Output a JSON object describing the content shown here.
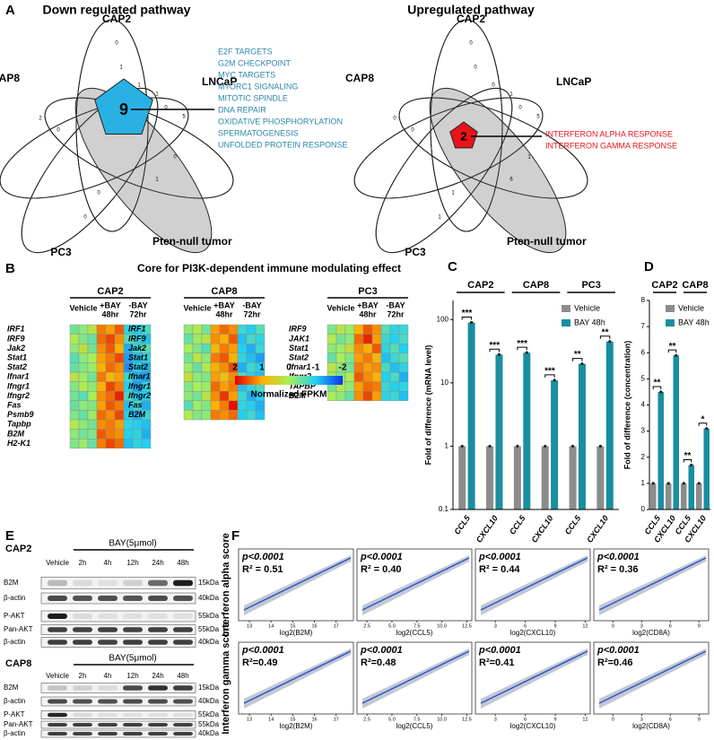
{
  "panels": {
    "A": {
      "label": "A",
      "left": {
        "title": "Down regulated pathway",
        "sets": [
          "CAP2",
          "CAP8",
          "LNCaP",
          "PC3",
          "Pten-null tumor"
        ],
        "core": 9,
        "counts": [
          0,
          2,
          5,
          0,
          1,
          1,
          0,
          0,
          1,
          0,
          1,
          0
        ],
        "pathways": [
          "E2F TARGETS",
          "G2M CHECKPOINT",
          "MYC TARGETS",
          "MTORC1 SIGNALING",
          "MITOTIC SPINDLE",
          "DNA REPAIR",
          "OXIDATIVE PHOSPHORYLATION",
          "SPERMATOGENESIS",
          "UNFOLDED PROTEIN RESPONSE"
        ]
      },
      "right": {
        "title": "Upregulated pathway",
        "sets": [
          "CAP2",
          "CAP8",
          "LNCaP",
          "PC3",
          "Pten-null tumor"
        ],
        "core": 2,
        "counts": [
          0,
          0,
          5,
          1,
          0,
          1,
          0,
          1,
          6,
          0,
          0,
          1
        ],
        "pathways": [
          "INTERFERON ALPHA RESPONSE",
          "INTERFERON GAMMA RESPONSE"
        ]
      }
    },
    "B": {
      "label": "B",
      "title": "Core for PI3K-dependent immune modulating effect",
      "columns": [
        "Vehicle",
        "+BAY",
        "-BAY"
      ],
      "times": [
        "48hr",
        "72hr"
      ],
      "colorbar": {
        "ticks": [
          2,
          1,
          0,
          -1,
          -2
        ],
        "colors": [
          "#e00000",
          "#ffb000",
          "#a8ef5a",
          "#22d0f0",
          "#1030f0"
        ],
        "label": "Normalized FPKM"
      },
      "heatmaps": [
        {
          "name": "CAP2",
          "genes": [
            "IRF1",
            "IRF9",
            "Jak2",
            "Stat1",
            "Stat2",
            "Ifnar1",
            "Ifngr1",
            "Ifngr2",
            "Fas",
            "Psmb9",
            "Tapbp",
            "B2M",
            "H2-K1"
          ],
          "values": [
            [
              -0.4,
              -0.2,
              0.2,
              1.3,
              1.1,
              1.5,
              -0.9,
              -1.0,
              -0.7
            ],
            [
              0.1,
              -0.3,
              -0.5,
              1.4,
              1.6,
              1.2,
              -0.6,
              -0.9,
              -1.1
            ],
            [
              -0.2,
              0.3,
              -0.4,
              1.2,
              1.5,
              1.0,
              -1.2,
              -0.8,
              -0.6
            ],
            [
              -0.6,
              -0.2,
              0.0,
              1.1,
              1.3,
              1.6,
              -1.3,
              -1.1,
              -0.9
            ],
            [
              -0.5,
              -0.3,
              -0.1,
              1.0,
              1.4,
              1.2,
              -1.4,
              -1.0,
              -1.2
            ],
            [
              0.2,
              -0.1,
              -0.4,
              1.3,
              0.9,
              1.1,
              -0.8,
              -1.2,
              -1.3
            ],
            [
              -0.3,
              0.1,
              -0.2,
              1.0,
              1.6,
              1.3,
              -1.0,
              -1.3,
              -0.9
            ],
            [
              -0.4,
              -0.6,
              0.0,
              1.2,
              1.4,
              1.8,
              -0.7,
              -1.1,
              -1.0
            ],
            [
              -0.5,
              -0.2,
              -0.3,
              1.1,
              1.5,
              1.3,
              -1.1,
              -0.8,
              -1.2
            ],
            [
              -0.3,
              -0.5,
              -0.1,
              1.4,
              1.2,
              1.6,
              -1.0,
              -1.2,
              -0.8
            ],
            [
              0.1,
              -0.2,
              -0.4,
              1.2,
              1.3,
              1.1,
              -0.9,
              -1.0,
              -1.1
            ],
            [
              -0.2,
              -0.4,
              -0.3,
              1.5,
              1.3,
              1.2,
              -1.0,
              -0.9,
              -1.2
            ],
            [
              -0.3,
              -0.1,
              -0.5,
              1.3,
              1.6,
              1.4,
              -1.1,
              -0.9,
              -1.0
            ]
          ]
        },
        {
          "name": "CAP8",
          "genes": [
            "IRF1",
            "IRF9",
            "Jak2",
            "Stat1",
            "Stat2",
            "Ifnar1",
            "Ifngr1",
            "Ifngr2",
            "Fas",
            "B2M"
          ],
          "values": [
            [
              -0.2,
              0.1,
              -0.4,
              1.1,
              1.4,
              1.2,
              -0.8,
              -1.0,
              -0.6
            ],
            [
              -0.5,
              -0.1,
              0.2,
              1.2,
              1.0,
              1.5,
              -1.1,
              -0.7,
              -0.9
            ],
            [
              0.0,
              -0.3,
              -0.6,
              0.9,
              1.3,
              1.1,
              -1.0,
              -1.2,
              -0.8
            ],
            [
              -0.4,
              0.2,
              -0.2,
              1.3,
              1.5,
              1.0,
              -0.9,
              -1.1,
              -1.3
            ],
            [
              -0.1,
              -0.5,
              0.1,
              1.0,
              1.2,
              1.6,
              -1.2,
              -0.8,
              -1.0
            ],
            [
              0.3,
              -0.2,
              -0.3,
              1.1,
              0.8,
              1.2,
              -0.7,
              -1.0,
              -1.1
            ],
            [
              -0.3,
              0.0,
              -0.1,
              1.4,
              1.1,
              1.3,
              -1.1,
              -0.9,
              -0.7
            ],
            [
              -0.2,
              -0.4,
              0.2,
              1.2,
              1.7,
              1.1,
              -0.8,
              -1.2,
              -1.0
            ],
            [
              -0.6,
              -0.1,
              -0.3,
              1.0,
              1.3,
              1.9,
              -0.9,
              -1.0,
              -1.2
            ],
            [
              0.1,
              -0.3,
              -0.2,
              1.3,
              1.2,
              1.4,
              -1.0,
              -0.8,
              -1.1
            ]
          ]
        },
        {
          "name": "PC3",
          "genes": [
            "IRF9",
            "JAK1",
            "Stat1",
            "Stat2",
            "Ifnar1",
            "Ifngr2",
            "TAPBP",
            "B2M"
          ],
          "values": [
            [
              -0.3,
              0.2,
              -0.1,
              1.0,
              1.5,
              1.2,
              -0.6,
              -0.9,
              -0.8
            ],
            [
              0.1,
              -0.4,
              -0.2,
              1.4,
              1.8,
              1.1,
              -0.8,
              -1.0,
              -0.7
            ],
            [
              -0.2,
              -0.1,
              0.3,
              1.2,
              1.0,
              1.5,
              -0.9,
              -0.6,
              -1.0
            ],
            [
              -0.5,
              0.0,
              -0.3,
              1.1,
              1.3,
              0.9,
              -1.1,
              -0.8,
              -0.6
            ],
            [
              0.2,
              -0.2,
              -0.4,
              1.3,
              1.1,
              1.2,
              -0.7,
              -1.1,
              -0.9
            ],
            [
              -0.1,
              -0.3,
              0.1,
              1.5,
              1.2,
              1.0,
              -1.0,
              -0.7,
              -1.2
            ],
            [
              -0.4,
              0.1,
              -0.2,
              1.1,
              1.4,
              1.3,
              -0.8,
              -1.0,
              -0.9
            ],
            [
              0.0,
              -0.2,
              -0.5,
              1.2,
              1.6,
              1.1,
              -0.9,
              -0.8,
              -1.1
            ]
          ]
        }
      ]
    },
    "C": {
      "label": "C",
      "chart_data": {
        "type": "bar",
        "log": true,
        "ylabel": "Fold of difference (mRNA level)",
        "groups": [
          "CAP2",
          "CAP8",
          "PC3"
        ],
        "categories": [
          "CCL5",
          "CXCL10",
          "CCL5",
          "CXCL10",
          "CCL5",
          "CXCL10"
        ],
        "ylim": [
          0.1,
          200
        ],
        "yticks": [
          0.1,
          1,
          10,
          100
        ],
        "series": [
          {
            "name": "Vehicle",
            "color": "#8c8c8c",
            "values": [
              1,
              1,
              1,
              1,
              1,
              1
            ]
          },
          {
            "name": "BAY 48h",
            "color": "#1a8ea0",
            "values": [
              90,
              28,
              30,
              11,
              20,
              45
            ]
          }
        ],
        "significance": [
          "***",
          "***",
          "***",
          "***",
          "**",
          "**"
        ]
      }
    },
    "D": {
      "label": "D",
      "chart_data": {
        "type": "bar",
        "log": false,
        "ylabel": "Fold of difference (concentration)",
        "groups": [
          "CAP2",
          "CAP8"
        ],
        "categories": [
          "CCL5",
          "CXCL10",
          "CCL5",
          "CXCL10"
        ],
        "ylim": [
          0,
          8
        ],
        "yticks": [
          0,
          1,
          2,
          3,
          4,
          5,
          6,
          7,
          8
        ],
        "series": [
          {
            "name": "Vehicle",
            "color": "#8c8c8c",
            "values": [
              1,
              1,
              1,
              1
            ]
          },
          {
            "name": "BAY 48h",
            "color": "#1a8ea0",
            "values": [
              4.5,
              5.9,
              1.7,
              3.1
            ]
          }
        ],
        "significance": [
          "**",
          "**",
          "**",
          "*"
        ]
      }
    },
    "E": {
      "label": "E",
      "blots": [
        {
          "cell": "CAP2",
          "treatment": "BAY(5μmol)",
          "lanes": [
            "Vehicle",
            "2h",
            "4h",
            "12h",
            "24h",
            "48h"
          ],
          "rows": [
            {
              "name": "B2M",
              "kda": "15kDa"
            },
            {
              "name": "β-actin",
              "kda": "40kDa"
            },
            {
              "name": "P-AKT",
              "kda": "55kDa"
            },
            {
              "name": "Pan-AKT",
              "kda": "55kDa"
            },
            {
              "name": "β-actin",
              "kda": "40kDa"
            }
          ]
        },
        {
          "cell": "CAP8",
          "treatment": "BAY(5μmol)",
          "lanes": [
            "Vehicle",
            "2h",
            "4h",
            "12h",
            "24h",
            "48h"
          ],
          "rows": [
            {
              "name": "B2M",
              "kda": "15kDa"
            },
            {
              "name": "β-actin",
              "kda": "40kDa"
            },
            {
              "name": "P-AKT",
              "kda": "55kDa"
            },
            {
              "name": "Pan-AKT",
              "kda": "55kDa"
            },
            {
              "name": "β-actin",
              "kda": "40kDa"
            }
          ]
        }
      ]
    },
    "F": {
      "label": "F",
      "ylabels": [
        "Interferon alpha score",
        "Interferon gamma score"
      ],
      "columns": [
        {
          "xlabel": "log2(B2M)",
          "xlim": [
            12.5,
            17.8
          ],
          "xticks": [
            13,
            14,
            15,
            16,
            17
          ]
        },
        {
          "xlabel": "log2(CCL5)",
          "xlim": [
            1.5,
            13
          ],
          "xticks": [
            2.5,
            {
              "value": 5,
              "label": "5.0"
            },
            7.5,
            {
              "value": 10,
              "label": "10.0"
            },
            12.5
          ]
        },
        {
          "xlabel": "log2(CXCL10)",
          "xlim": [
            1,
            12.5
          ],
          "xticks": [
            3,
            6,
            9,
            12
          ]
        },
        {
          "xlabel": "log2(CD8A)",
          "xlim": [
            -2,
            10
          ],
          "xticks": [
            0,
            3,
            6,
            9
          ]
        }
      ],
      "stats": [
        [
          {
            "p": "p<0.0001",
            "r2": "R² = 0.51"
          },
          {
            "p": "p<0.0001",
            "r2": "R² = 0.40"
          },
          {
            "p": "p<0.0001",
            "r2": "R² = 0.44"
          },
          {
            "p": "p<0.0001",
            "r2": "R² = 0.36"
          }
        ],
        [
          {
            "p": "p<0.0001",
            "r2": "R²=0.49"
          },
          {
            "p": "p<0.0001",
            "r2": "R²=0.48"
          },
          {
            "p": "p<0.0001",
            "r2": "R²=0.41"
          },
          {
            "p": "p<0.0001",
            "r2": "R²=0.46"
          }
        ]
      ]
    }
  }
}
